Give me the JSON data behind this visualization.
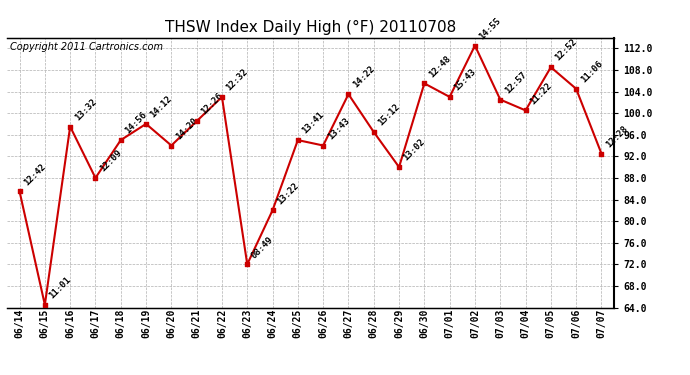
{
  "title": "THSW Index Daily High (°F) 20110708",
  "copyright": "Copyright 2011 Cartronics.com",
  "dates": [
    "06/14",
    "06/15",
    "06/16",
    "06/17",
    "06/18",
    "06/19",
    "06/20",
    "06/21",
    "06/22",
    "06/23",
    "06/24",
    "06/25",
    "06/26",
    "06/27",
    "06/28",
    "06/29",
    "06/30",
    "07/01",
    "07/02",
    "07/03",
    "07/04",
    "07/05",
    "07/06",
    "07/07"
  ],
  "values": [
    85.5,
    64.5,
    97.5,
    88.0,
    95.0,
    98.0,
    94.0,
    98.5,
    103.0,
    72.0,
    82.0,
    95.0,
    94.0,
    103.5,
    96.5,
    90.0,
    105.5,
    103.0,
    112.5,
    102.5,
    100.5,
    108.5,
    104.5,
    92.5
  ],
  "labels": [
    "12:42",
    "11:01",
    "13:32",
    "12:09",
    "14:56",
    "14:12",
    "14:20",
    "12:26",
    "12:32",
    "08:49",
    "13:22",
    "13:41",
    "13:43",
    "14:22",
    "15:12",
    "13:02",
    "12:48",
    "15:43",
    "14:55",
    "12:57",
    "11:22",
    "12:52",
    "11:06",
    "12:28"
  ],
  "line_color": "#cc0000",
  "marker_color": "#cc0000",
  "bg_color": "#ffffff",
  "grid_color": "#b0b0b0",
  "ylim_min": 64.0,
  "ylim_max": 114.0,
  "ytick_min": 64.0,
  "ytick_max": 112.0,
  "ytick_step": 4.0,
  "title_fontsize": 11,
  "label_fontsize": 6.5,
  "tick_fontsize": 7,
  "copyright_fontsize": 7
}
